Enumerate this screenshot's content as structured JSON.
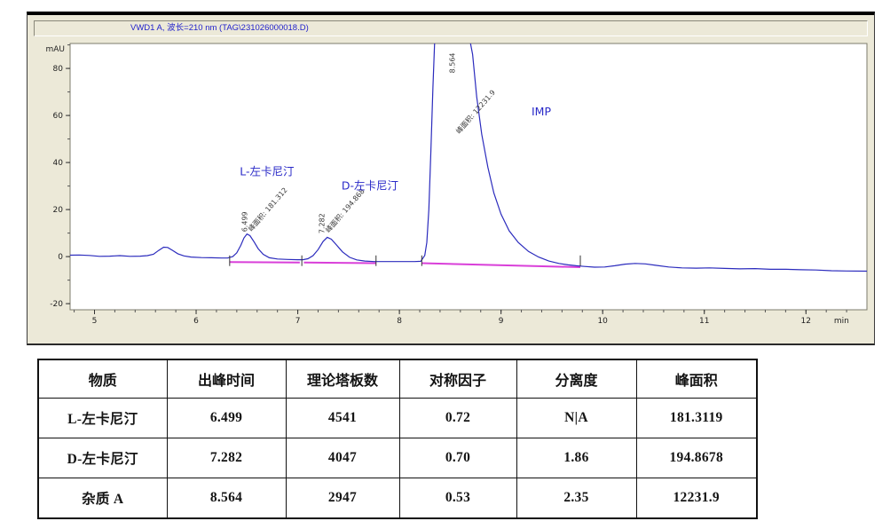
{
  "window": {
    "title": "VWD1 A, 波长=210 nm (TAG\\231026000018.D)"
  },
  "chart_data": {
    "type": "line",
    "title": "VWD1 A, 波长=210 nm (TAG\\231026000018.D)",
    "xlabel": "min",
    "ylabel": "mAU",
    "xlim": [
      4.76,
      12.6
    ],
    "ylim": [
      -22.6,
      90.6
    ],
    "x_major_ticks": [
      5,
      6,
      7,
      8,
      9,
      10,
      11,
      12
    ],
    "x_minor_step": 0.2,
    "y_major_ticks": [
      -20,
      0,
      20,
      40,
      60,
      80
    ],
    "y_minor_step": 10,
    "grid": false,
    "trace_color": "#2b2bbd",
    "baseline_color": "#d93fd9",
    "label_color": "#2a2ac8",
    "peaks": [
      {
        "name": "L-左卡尼汀",
        "rt": 6.499,
        "area": 181.3119
      },
      {
        "name": "D-左卡尼汀",
        "rt": 7.282,
        "area": 194.8678
      },
      {
        "name": "杂质 A (IMP)",
        "rt": 8.564,
        "area": 12231.9
      }
    ],
    "trace": [
      [
        4.76,
        0.6
      ],
      [
        4.85,
        0.7
      ],
      [
        4.95,
        0.5
      ],
      [
        5.05,
        0.1
      ],
      [
        5.15,
        0.2
      ],
      [
        5.25,
        0.4
      ],
      [
        5.35,
        0.1
      ],
      [
        5.45,
        0.2
      ],
      [
        5.52,
        0.4
      ],
      [
        5.58,
        1.0
      ],
      [
        5.63,
        2.6
      ],
      [
        5.68,
        4.0
      ],
      [
        5.72,
        3.9
      ],
      [
        5.77,
        2.6
      ],
      [
        5.82,
        1.2
      ],
      [
        5.88,
        0.3
      ],
      [
        5.95,
        -0.2
      ],
      [
        6.05,
        -0.4
      ],
      [
        6.15,
        -0.5
      ],
      [
        6.25,
        -0.6
      ],
      [
        6.31,
        -0.6
      ],
      [
        6.36,
        0.0
      ],
      [
        6.4,
        1.6
      ],
      [
        6.44,
        4.8
      ],
      [
        6.47,
        7.9
      ],
      [
        6.5,
        9.6
      ],
      [
        6.53,
        8.9
      ],
      [
        6.57,
        6.3
      ],
      [
        6.61,
        3.4
      ],
      [
        6.66,
        1.0
      ],
      [
        6.72,
        -0.5
      ],
      [
        6.8,
        -1.0
      ],
      [
        6.9,
        -1.2
      ],
      [
        7.0,
        -1.3
      ],
      [
        7.05,
        -1.3
      ],
      [
        7.1,
        -0.9
      ],
      [
        7.15,
        0.4
      ],
      [
        7.2,
        3.0
      ],
      [
        7.25,
        6.5
      ],
      [
        7.29,
        8.2
      ],
      [
        7.33,
        7.4
      ],
      [
        7.38,
        5.0
      ],
      [
        7.44,
        2.0
      ],
      [
        7.51,
        -0.3
      ],
      [
        7.58,
        -1.4
      ],
      [
        7.66,
        -1.9
      ],
      [
        7.75,
        -2.1
      ],
      [
        7.85,
        -2.1
      ],
      [
        7.95,
        -2.1
      ],
      [
        8.05,
        -2.1
      ],
      [
        8.15,
        -2.1
      ],
      [
        8.21,
        -2.0
      ],
      [
        8.25,
        0.5
      ],
      [
        8.27,
        6
      ],
      [
        8.29,
        20
      ],
      [
        8.31,
        45
      ],
      [
        8.33,
        72
      ],
      [
        8.35,
        95
      ],
      [
        8.68,
        95
      ],
      [
        8.72,
        86
      ],
      [
        8.76,
        68
      ],
      [
        8.81,
        52
      ],
      [
        8.87,
        38
      ],
      [
        8.93,
        27
      ],
      [
        9.0,
        18
      ],
      [
        9.08,
        11
      ],
      [
        9.17,
        6
      ],
      [
        9.27,
        2.2
      ],
      [
        9.37,
        -0.2
      ],
      [
        9.47,
        -1.9
      ],
      [
        9.57,
        -2.9
      ],
      [
        9.66,
        -3.5
      ],
      [
        9.74,
        -3.9
      ],
      [
        9.82,
        -4.2
      ],
      [
        9.92,
        -4.5
      ],
      [
        10.02,
        -4.4
      ],
      [
        10.12,
        -3.9
      ],
      [
        10.22,
        -3.2
      ],
      [
        10.32,
        -2.9
      ],
      [
        10.42,
        -3.1
      ],
      [
        10.52,
        -3.7
      ],
      [
        10.65,
        -4.4
      ],
      [
        10.78,
        -4.8
      ],
      [
        10.92,
        -4.9
      ],
      [
        11.05,
        -4.8
      ],
      [
        11.2,
        -5.0
      ],
      [
        11.35,
        -5.2
      ],
      [
        11.5,
        -5.1
      ],
      [
        11.65,
        -5.4
      ],
      [
        11.8,
        -5.4
      ],
      [
        11.95,
        -5.6
      ],
      [
        12.1,
        -5.7
      ],
      [
        12.25,
        -6.0
      ],
      [
        12.4,
        -6.1
      ],
      [
        12.6,
        -6.2
      ]
    ],
    "integration_baselines": [
      {
        "x1": 6.33,
        "y1": -2.3,
        "x2": 7.02,
        "y2": -2.5
      },
      {
        "x1": 7.06,
        "y1": -2.5,
        "x2": 7.77,
        "y2": -2.8
      },
      {
        "x1": 8.22,
        "y1": -2.8,
        "x2": 9.78,
        "y2": -4.5
      }
    ],
    "integration_ticks": [
      6.33,
      7.04,
      7.77,
      8.22,
      9.78
    ],
    "peak_annotations": [
      {
        "x": 6.5,
        "rt_label": "6.499",
        "y_rt": 10.5,
        "area_label": "峰面积: 181.312",
        "y_area": 10.5
      },
      {
        "x": 7.26,
        "rt_label": "7.282",
        "y_rt": 9.8,
        "area_label": "峰面积: 194.868",
        "y_area": 10.0
      },
      {
        "x": 8.545,
        "rt_label": "8.564",
        "y_rt": 78.0,
        "area_label": "峰面积: 12231.9",
        "y_area": 52.0
      }
    ],
    "compound_labels": [
      {
        "text": "L-左卡尼汀",
        "x": 6.43,
        "y": 34.5
      },
      {
        "text": "D-左卡尼汀",
        "x": 7.43,
        "y": 28.5
      },
      {
        "text": "IMP",
        "x": 9.3,
        "y": 60.0
      }
    ]
  },
  "table": {
    "headers": [
      "物质",
      "出峰时间",
      "理论塔板数",
      "对称因子",
      "分离度",
      "峰面积"
    ],
    "rows": [
      {
        "cells": [
          "L-左卡尼汀",
          "6.499",
          "4541",
          "0.72",
          "N|A",
          "181.3119"
        ]
      },
      {
        "cells": [
          "D-左卡尼汀",
          "7.282",
          "4047",
          "0.70",
          "1.86",
          "194.8678"
        ]
      },
      {
        "cells": [
          "杂质 A",
          "8.564",
          "2947",
          "0.53",
          "2.35",
          "12231.9"
        ]
      }
    ]
  }
}
